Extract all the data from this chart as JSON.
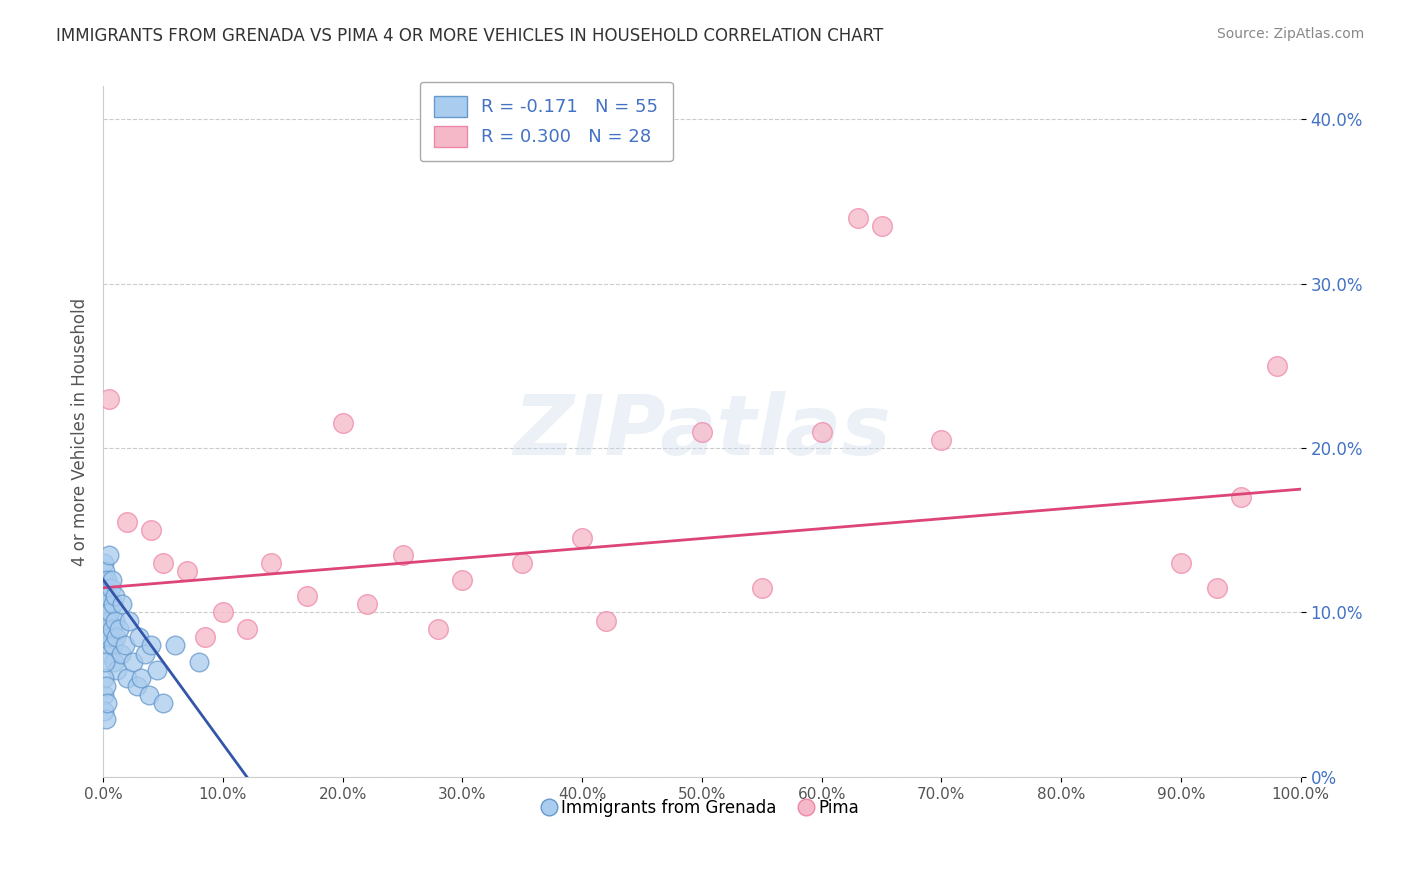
{
  "title": "IMMIGRANTS FROM GRENADA VS PIMA 4 OR MORE VEHICLES IN HOUSEHOLD CORRELATION CHART",
  "source": "Source: ZipAtlas.com",
  "ylabel": "4 or more Vehicles in Household",
  "xlim": [
    0.0,
    100.0
  ],
  "ylim": [
    0.0,
    42.0
  ],
  "xtick_vals": [
    0,
    10,
    20,
    30,
    40,
    50,
    60,
    70,
    80,
    90,
    100
  ],
  "ytick_vals": [
    0,
    10,
    20,
    30,
    40
  ],
  "blue_face": "#aaccee",
  "blue_edge": "#6699cc",
  "pink_face": "#f5b8c8",
  "pink_edge": "#ee88aa",
  "trend_blue": "#3355aa",
  "trend_pink": "#dd4477",
  "R_blue": -0.171,
  "N_blue": 55,
  "R_pink": 0.3,
  "N_pink": 28,
  "blue_x": [
    0.05,
    0.08,
    0.1,
    0.12,
    0.15,
    0.18,
    0.2,
    0.22,
    0.25,
    0.28,
    0.3,
    0.32,
    0.35,
    0.38,
    0.4,
    0.42,
    0.45,
    0.48,
    0.5,
    0.55,
    0.6,
    0.65,
    0.7,
    0.75,
    0.8,
    0.85,
    0.9,
    0.95,
    1.0,
    1.1,
    1.2,
    1.3,
    1.5,
    1.6,
    1.8,
    2.0,
    2.2,
    2.5,
    2.8,
    3.0,
    3.2,
    3.5,
    3.8,
    4.0,
    4.5,
    5.0,
    0.05,
    0.08,
    0.1,
    0.15,
    0.2,
    0.25,
    0.3,
    6.0,
    8.0
  ],
  "blue_y": [
    12.0,
    11.5,
    13.0,
    10.5,
    12.5,
    11.0,
    9.5,
    10.0,
    8.5,
    11.5,
    10.0,
    9.0,
    12.0,
    10.5,
    8.0,
    11.0,
    9.5,
    7.5,
    13.5,
    10.0,
    8.5,
    11.5,
    9.0,
    12.0,
    10.5,
    8.0,
    7.0,
    9.5,
    11.0,
    8.5,
    6.5,
    9.0,
    7.5,
    10.5,
    8.0,
    6.0,
    9.5,
    7.0,
    5.5,
    8.5,
    6.0,
    7.5,
    5.0,
    8.0,
    6.5,
    4.5,
    5.0,
    6.0,
    4.0,
    7.0,
    3.5,
    5.5,
    4.5,
    8.0,
    7.0
  ],
  "pink_x": [
    0.5,
    2.0,
    4.0,
    5.0,
    7.0,
    8.5,
    10.0,
    12.0,
    14.0,
    17.0,
    20.0,
    22.0,
    25.0,
    28.0,
    30.0,
    35.0,
    40.0,
    42.0,
    50.0,
    55.0,
    60.0,
    63.0,
    65.0,
    70.0,
    90.0,
    93.0,
    95.0,
    98.0
  ],
  "pink_y": [
    23.0,
    15.5,
    15.0,
    13.0,
    12.5,
    8.5,
    10.0,
    9.0,
    13.0,
    11.0,
    21.5,
    10.5,
    13.5,
    9.0,
    12.0,
    13.0,
    14.5,
    9.5,
    21.0,
    11.5,
    21.0,
    34.0,
    33.5,
    20.5,
    13.0,
    11.5,
    17.0,
    25.0
  ],
  "pink_trend_x0": 0.0,
  "pink_trend_y0": 11.5,
  "pink_trend_x1": 100.0,
  "pink_trend_y1": 17.5,
  "blue_trend_x0": 0.0,
  "blue_trend_y0": 12.0,
  "blue_trend_x1": 12.0,
  "blue_trend_y1": 0.0,
  "watermark_text": "ZIPatlas",
  "bg_color": "#ffffff",
  "grid_color": "#cccccc",
  "tick_color": "#4472c4",
  "title_color": "#333333",
  "source_color": "#888888",
  "label_color": "#555555"
}
